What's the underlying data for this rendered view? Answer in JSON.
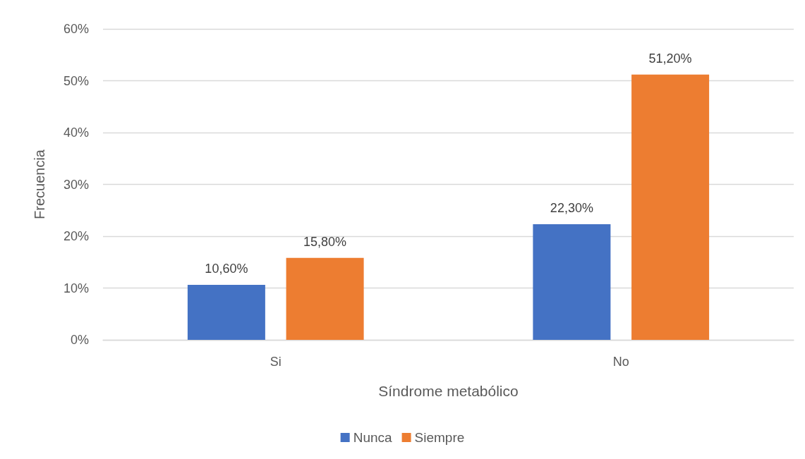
{
  "chart_data": {
    "type": "bar",
    "xlabel": "Síndrome metabólico",
    "ylabel": "Frecuencia",
    "categories": [
      "Si",
      "No"
    ],
    "series": [
      {
        "name": "Nunca",
        "color": "#4472c4",
        "values": [
          10.6,
          22.3
        ],
        "value_labels": [
          "10,60%",
          "22,30%"
        ]
      },
      {
        "name": "Siempre",
        "color": "#ed7d31",
        "values": [
          15.8,
          51.2
        ],
        "value_labels": [
          "15,80%",
          "51,20%"
        ]
      }
    ],
    "ylim": [
      0,
      60
    ],
    "yticks": [
      {
        "value": 0,
        "label": "0%"
      },
      {
        "value": 10,
        "label": "10%"
      },
      {
        "value": 20,
        "label": "20%"
      },
      {
        "value": 30,
        "label": "30%"
      },
      {
        "value": 40,
        "label": "40%"
      },
      {
        "value": 50,
        "label": "50%"
      },
      {
        "value": 60,
        "label": "60%"
      }
    ],
    "grid": "y",
    "legend": "bottom"
  }
}
